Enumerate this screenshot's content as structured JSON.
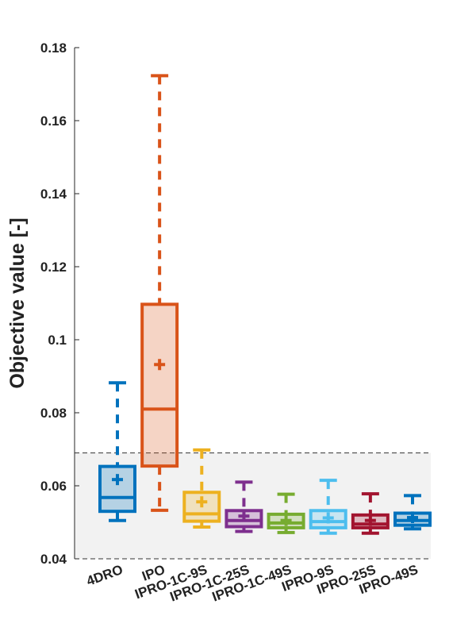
{
  "chart_data": {
    "type": "box",
    "title": "",
    "xlabel": "",
    "ylabel": "Objective value [-]",
    "ylim": [
      0.04,
      0.18
    ],
    "y_ticks": [
      0.04,
      0.06,
      0.08,
      0.1,
      0.12,
      0.14,
      0.16,
      0.18
    ],
    "y_tick_labels": [
      "0.04",
      "0.06",
      "0.08",
      "0.1",
      "0.12",
      "0.14",
      "0.16",
      "0.18"
    ],
    "categories": [
      "4DRO",
      "IPO",
      "IPRO-1C-9S",
      "IPRO-1C-25S",
      "IPRO-1C-49S",
      "IPRO-9S",
      "IPRO-25S",
      "IPRO-49S"
    ],
    "series": [
      {
        "color": "#0072BD",
        "whisker_low": 0.0505,
        "q1": 0.053,
        "median": 0.0568,
        "q3": 0.0653,
        "whisker_high": 0.0882,
        "mean": 0.0617
      },
      {
        "color": "#D95319",
        "whisker_low": 0.0533,
        "q1": 0.0654,
        "median": 0.081,
        "q3": 0.1097,
        "whisker_high": 0.1723,
        "mean": 0.0932
      },
      {
        "color": "#EDB120",
        "whisker_low": 0.0487,
        "q1": 0.0503,
        "median": 0.0523,
        "q3": 0.0582,
        "whisker_high": 0.0698,
        "mean": 0.0556
      },
      {
        "color": "#7E2F8E",
        "whisker_low": 0.0475,
        "q1": 0.0488,
        "median": 0.0505,
        "q3": 0.0532,
        "whisker_high": 0.061,
        "mean": 0.0517
      },
      {
        "color": "#77AC30",
        "whisker_low": 0.0472,
        "q1": 0.0485,
        "median": 0.0498,
        "q3": 0.0522,
        "whisker_high": 0.0577,
        "mean": 0.0505
      },
      {
        "color": "#4DBEEE",
        "whisker_low": 0.047,
        "q1": 0.0485,
        "median": 0.0502,
        "q3": 0.0532,
        "whisker_high": 0.0615,
        "mean": 0.0512
      },
      {
        "color": "#A2142F",
        "whisker_low": 0.047,
        "q1": 0.0485,
        "median": 0.0495,
        "q3": 0.052,
        "whisker_high": 0.0578,
        "mean": 0.0505
      },
      {
        "color": "#0072BD",
        "whisker_low": 0.0482,
        "q1": 0.0492,
        "median": 0.0505,
        "q3": 0.0525,
        "whisker_high": 0.0573,
        "mean": 0.0513
      }
    ],
    "reference_band": {
      "from": 0.04,
      "to": 0.069,
      "fill": "#f2f2f2",
      "border": "dashed"
    },
    "grid": false,
    "legend": "none"
  }
}
